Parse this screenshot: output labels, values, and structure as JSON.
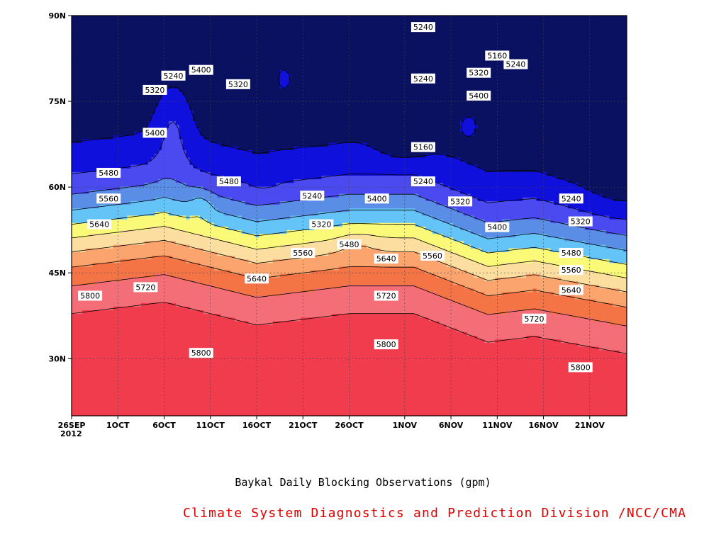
{
  "chart_data": {
    "type": "heatmap",
    "title": "",
    "xlabel": "",
    "ylabel": "",
    "x_tick_labels": [
      "26SEP\n2012",
      "1OCT",
      "6OCT",
      "11OCT",
      "16OCT",
      "21OCT",
      "26OCT",
      "1NOV",
      "6NOV",
      "11NOV",
      "16NOV",
      "21NOV"
    ],
    "y_tick_labels": [
      "30N",
      "45N",
      "60N",
      "75N",
      "90N"
    ],
    "xlim": [
      "2012-09-26",
      "2012-11-25"
    ],
    "ylim": [
      20,
      90
    ],
    "grid": true,
    "contour_levels": [
      5160,
      5240,
      5320,
      5400,
      5480,
      5560,
      5640,
      5720,
      5800,
      5880
    ],
    "level_colors": [
      "#0a1161",
      "#1010dc",
      "#4a4af0",
      "#5a8ee6",
      "#64c4f8",
      "#fafa78",
      "#fcdfa0",
      "#fca46e",
      "#f47446",
      "#f46e78",
      "#f03c4c"
    ],
    "contour_labels": [
      {
        "value": 5240,
        "date": "2012-11-03",
        "lat": 88
      },
      {
        "value": 5160,
        "date": "2012-11-11",
        "lat": 83
      },
      {
        "value": 5240,
        "date": "2012-11-13",
        "lat": 81.5
      },
      {
        "value": 5240,
        "date": "2012-10-07",
        "lat": 79.5
      },
      {
        "value": 5320,
        "date": "2012-10-05",
        "lat": 77
      },
      {
        "value": 5400,
        "date": "2012-10-10",
        "lat": 80.5
      },
      {
        "value": 5320,
        "date": "2012-10-14",
        "lat": 78
      },
      {
        "value": 5240,
        "date": "2012-11-03",
        "lat": 79
      },
      {
        "value": 5320,
        "date": "2012-11-09",
        "lat": 80
      },
      {
        "value": 5400,
        "date": "2012-11-09",
        "lat": 76
      },
      {
        "value": 5400,
        "date": "2012-10-05",
        "lat": 69.5
      },
      {
        "value": 5160,
        "date": "2012-11-03",
        "lat": 67
      },
      {
        "value": 5480,
        "date": "2012-09-30",
        "lat": 62.5
      },
      {
        "value": 5480,
        "date": "2012-10-13",
        "lat": 61
      },
      {
        "value": 5240,
        "date": "2012-11-03",
        "lat": 61
      },
      {
        "value": 5560,
        "date": "2012-09-30",
        "lat": 58
      },
      {
        "value": 5240,
        "date": "2012-10-22",
        "lat": 58.5
      },
      {
        "value": 5400,
        "date": "2012-10-29",
        "lat": 58
      },
      {
        "value": 5320,
        "date": "2012-11-07",
        "lat": 57.5
      },
      {
        "value": 5240,
        "date": "2012-11-19",
        "lat": 58
      },
      {
        "value": 5320,
        "date": "2012-10-23",
        "lat": 53.5
      },
      {
        "value": 5320,
        "date": "2012-11-20",
        "lat": 54
      },
      {
        "value": 5640,
        "date": "2012-09-29",
        "lat": 53.5
      },
      {
        "value": 5400,
        "date": "2012-11-11",
        "lat": 53
      },
      {
        "value": 5480,
        "date": "2012-10-26",
        "lat": 50
      },
      {
        "value": 5560,
        "date": "2012-10-21",
        "lat": 48.5
      },
      {
        "value": 5560,
        "date": "2012-11-04",
        "lat": 48
      },
      {
        "value": 5640,
        "date": "2012-10-30",
        "lat": 47.5
      },
      {
        "value": 5480,
        "date": "2012-11-19",
        "lat": 48.5
      },
      {
        "value": 5560,
        "date": "2012-11-19",
        "lat": 45.5
      },
      {
        "value": 5640,
        "date": "2012-10-16",
        "lat": 44
      },
      {
        "value": 5720,
        "date": "2012-10-04",
        "lat": 42.5
      },
      {
        "value": 5640,
        "date": "2012-11-19",
        "lat": 42
      },
      {
        "value": 5800,
        "date": "2012-09-28",
        "lat": 41
      },
      {
        "value": 5720,
        "date": "2012-10-30",
        "lat": 41
      },
      {
        "value": 5720,
        "date": "2012-11-15",
        "lat": 37
      },
      {
        "value": 5800,
        "date": "2012-10-30",
        "lat": 32.5
      },
      {
        "value": 5800,
        "date": "2012-10-10",
        "lat": 31
      },
      {
        "value": 5800,
        "date": "2012-11-20",
        "lat": 28.5
      }
    ]
  },
  "caption": "Baykal Daily Blocking Observations (gpm)",
  "credit": "Climate System Diagnostics and Prediction Division /NCC/CMA"
}
